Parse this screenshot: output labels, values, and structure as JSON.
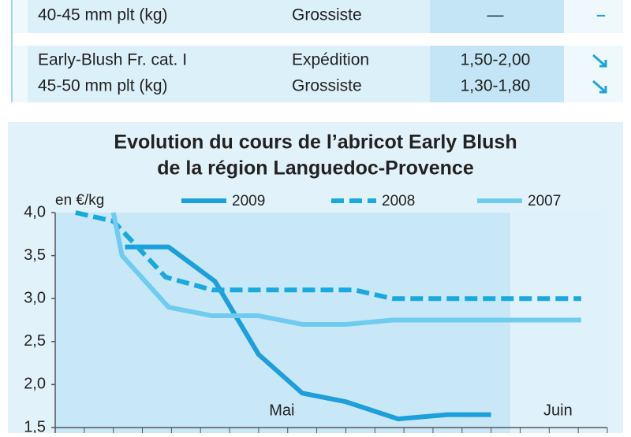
{
  "table": {
    "rows": [
      [
        [
          "40-45 mm plt (kg)"
        ],
        [
          "Grossiste"
        ],
        [
          "—"
        ],
        [
          "–"
        ]
      ],
      [
        [
          "Early-Blush Fr. cat. I",
          "45-50 mm plt (kg)"
        ],
        [
          "Expédition",
          "Grossiste"
        ],
        [
          "1,50-2,00",
          "1,30-1,80"
        ]
      ]
    ]
  },
  "chart_data": {
    "type": "line",
    "title": [
      "Evolution du cours de l’abricot Early Blush",
      "de la région Languedoc-Provence"
    ],
    "y_label": "en €/kg",
    "xlim": [
      0,
      19
    ],
    "xticks": [
      {
        "value": 7.8,
        "label": "Mai"
      },
      {
        "value": 17.3,
        "label": "Juin"
      }
    ],
    "ylim": [
      1.5,
      4.0
    ],
    "yticks": [
      {
        "value": 1.5,
        "label": "1,5"
      },
      {
        "value": 2.0,
        "label": "2,0"
      },
      {
        "value": 2.5,
        "label": "2,5"
      },
      {
        "value": 3.0,
        "label": "3,0"
      },
      {
        "value": 3.5,
        "label": "3,5"
      },
      {
        "value": 4.0,
        "label": "4,0"
      }
    ],
    "series": [
      {
        "name": "2009",
        "color": "#1c9fdb",
        "dash": false,
        "x": [
          2.4,
          3.9,
          5.5,
          7.0,
          8.5,
          10.0,
          11.8,
          13.5,
          15.0
        ],
        "values": [
          3.6,
          3.6,
          3.2,
          2.35,
          1.9,
          1.8,
          1.6,
          1.65,
          1.65
        ]
      },
      {
        "name": "2008",
        "color": "#19a9dc",
        "dash": true,
        "x": [
          0.7,
          2.0,
          3.8,
          5.4,
          10.3,
          11.6,
          18.1
        ],
        "values": [
          4.0,
          3.9,
          3.25,
          3.1,
          3.1,
          3.0,
          3.0
        ]
      },
      {
        "name": "2007",
        "color": "#6fcbef",
        "dash": false,
        "x": [
          2.0,
          2.3,
          3.9,
          5.4,
          7.0,
          8.5,
          10.0,
          11.6,
          18.1
        ],
        "values": [
          4.0,
          3.5,
          2.9,
          2.8,
          2.8,
          2.7,
          2.7,
          2.75,
          2.75
        ]
      }
    ]
  }
}
